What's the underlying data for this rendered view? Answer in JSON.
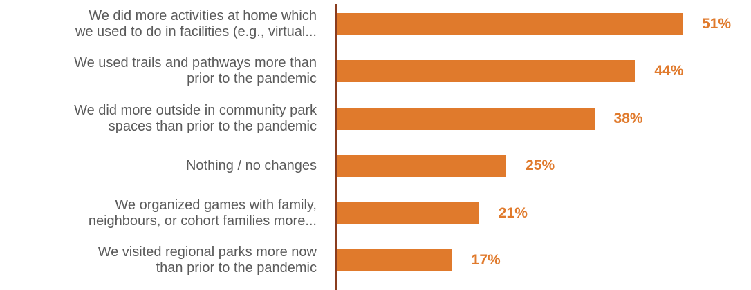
{
  "chart_data": {
    "type": "bar",
    "orientation": "horizontal",
    "categories": [
      "We did more activities at home which\nwe used to do in facilities (e.g., virtual...",
      "We used trails and pathways more than\nprior to the pandemic",
      "We did more outside in community park\nspaces than prior to the pandemic",
      "Nothing / no changes",
      "We organized games with family,\nneighbours, or cohort families more...",
      "We visited regional parks more now\nthan prior to the pandemic"
    ],
    "values": [
      51,
      44,
      38,
      25,
      21,
      17
    ],
    "value_labels": [
      "51%",
      "44%",
      "38%",
      "25%",
      "21%",
      "17%"
    ],
    "title": "",
    "xlabel": "",
    "ylabel": "",
    "xlim": [
      0,
      55
    ],
    "grid": false,
    "legend": "none"
  },
  "colors": {
    "bar": "#E07A2C",
    "value_label": "#E07A2C",
    "category_label": "#5a5a5a",
    "axis": "#8a3d1f"
  }
}
